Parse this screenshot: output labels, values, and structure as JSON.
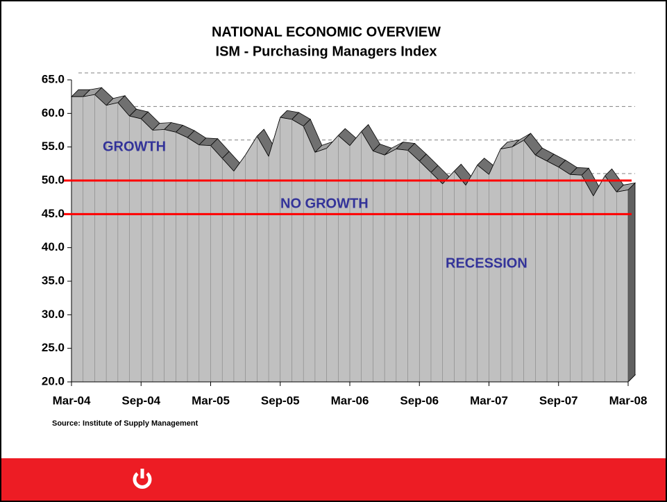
{
  "chart_data": {
    "type": "area3d",
    "title": "NATIONAL ECONOMIC OVERVIEW",
    "subtitle": "ISM - Purchasing Managers Index",
    "source": "Source: Institute of Supply Management",
    "categories": [
      "Mar-04",
      null,
      null,
      null,
      null,
      null,
      "Sep-04",
      null,
      null,
      null,
      null,
      null,
      "Mar-05",
      null,
      null,
      null,
      null,
      null,
      "Sep-05",
      null,
      null,
      null,
      null,
      null,
      "Mar-06",
      null,
      null,
      null,
      null,
      null,
      "Sep-06",
      null,
      null,
      null,
      null,
      null,
      "Mar-07",
      null,
      null,
      null,
      null,
      null,
      "Sep-07",
      null,
      null,
      null,
      null,
      null,
      "Mar-08"
    ],
    "values": [
      62.5,
      62.5,
      62.8,
      61.2,
      61.6,
      59.6,
      59.2,
      57.5,
      57.6,
      57.2,
      56.4,
      55.3,
      55.2,
      53.3,
      51.4,
      53.8,
      56.6,
      53.6,
      59.4,
      59.1,
      58.1,
      54.2,
      54.8,
      56.7,
      55.2,
      57.3,
      54.4,
      53.8,
      54.7,
      54.5,
      52.9,
      51.2,
      49.5,
      51.4,
      49.3,
      52.3,
      50.9,
      54.7,
      55.0,
      56.0,
      53.8,
      52.9,
      52.0,
      50.9,
      50.8,
      47.7,
      50.7,
      48.3,
      48.6
    ],
    "color": "#c0c0c0",
    "ylim": [
      20,
      65
    ],
    "yticks": [
      {
        "value": 20,
        "label": "20.0"
      },
      {
        "value": 25,
        "label": "25.0"
      },
      {
        "value": 30,
        "label": "30.0"
      },
      {
        "value": 35,
        "label": "35.0"
      },
      {
        "value": 40,
        "label": "40.0"
      },
      {
        "value": 45,
        "label": "45.0"
      },
      {
        "value": 50,
        "label": "50.0"
      },
      {
        "value": 55,
        "label": "55.0"
      },
      {
        "value": 60,
        "label": "60.0"
      },
      {
        "value": 65,
        "label": "65.0"
      }
    ],
    "grid": true,
    "reference_lines": [
      {
        "value": 50,
        "color": "#ff0000"
      },
      {
        "value": 45,
        "color": "#ff0000"
      }
    ],
    "annotations": [
      "GROWTH",
      "NO GROWTH",
      "RECESSION"
    ]
  }
}
